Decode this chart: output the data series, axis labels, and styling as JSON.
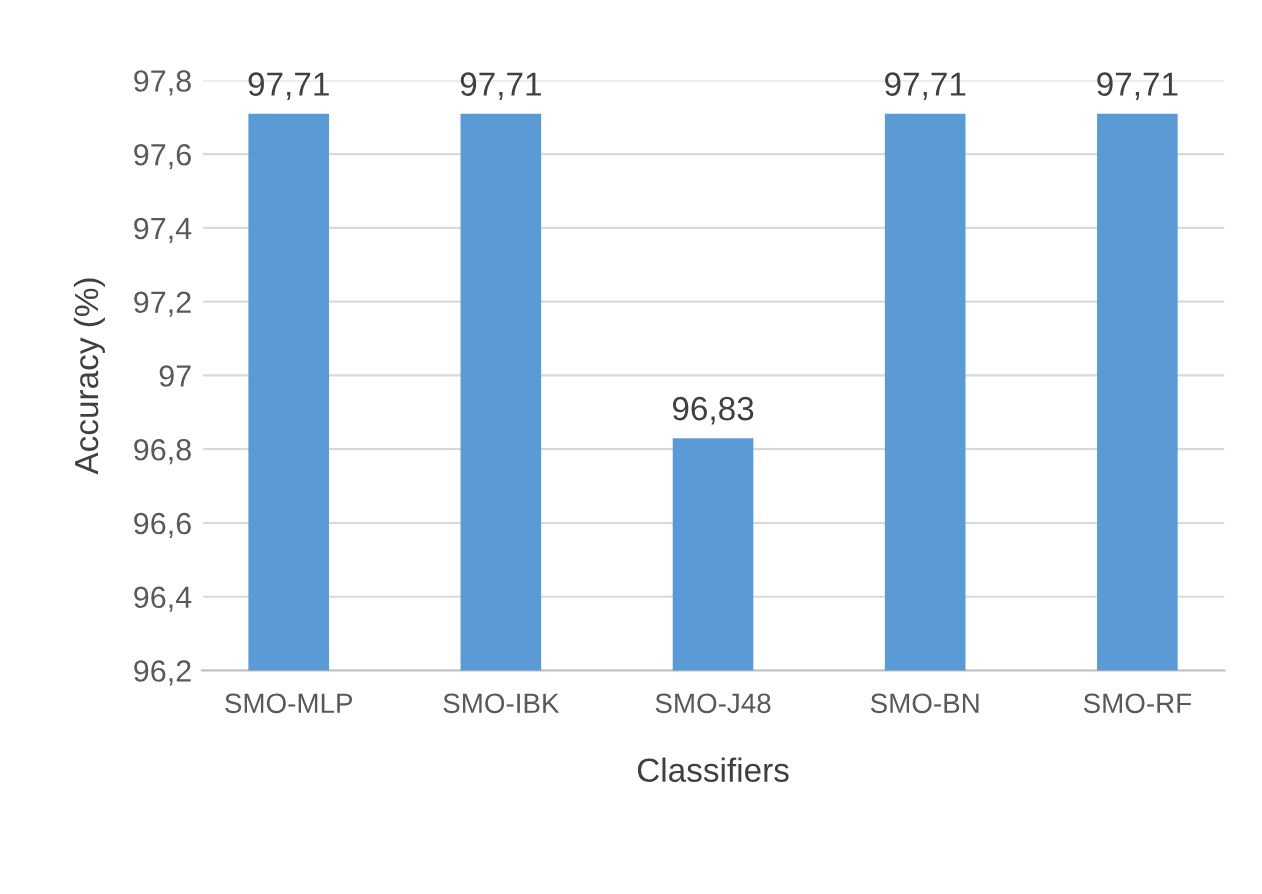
{
  "chart_data": {
    "type": "bar",
    "xlabel": "Classifiers",
    "ylabel": "Accuracy (%)",
    "categories": [
      "SMO-MLP",
      "SMO-IBK",
      "SMO-J48",
      "SMO-BN",
      "SMO-RF"
    ],
    "values": [
      97.71,
      97.71,
      96.83,
      97.71,
      97.71
    ],
    "value_labels": [
      "97,71",
      "97,71",
      "96,83",
      "97,71",
      "97,71"
    ],
    "color": "#5b9bd5",
    "ylim": [
      96.2,
      97.8
    ],
    "yticks": [
      {
        "value": 96.2,
        "label": "96,2"
      },
      {
        "value": 96.4,
        "label": "96,4"
      },
      {
        "value": 96.6,
        "label": "96,6"
      },
      {
        "value": 96.8,
        "label": "96,8"
      },
      97,
      {
        "value": 97.2,
        "label": "97,2"
      },
      {
        "value": 97.4,
        "label": "97,4"
      },
      {
        "value": 97.6,
        "label": "97,6"
      },
      {
        "value": 97.8,
        "label": "97,8"
      }
    ],
    "grid": "y"
  }
}
